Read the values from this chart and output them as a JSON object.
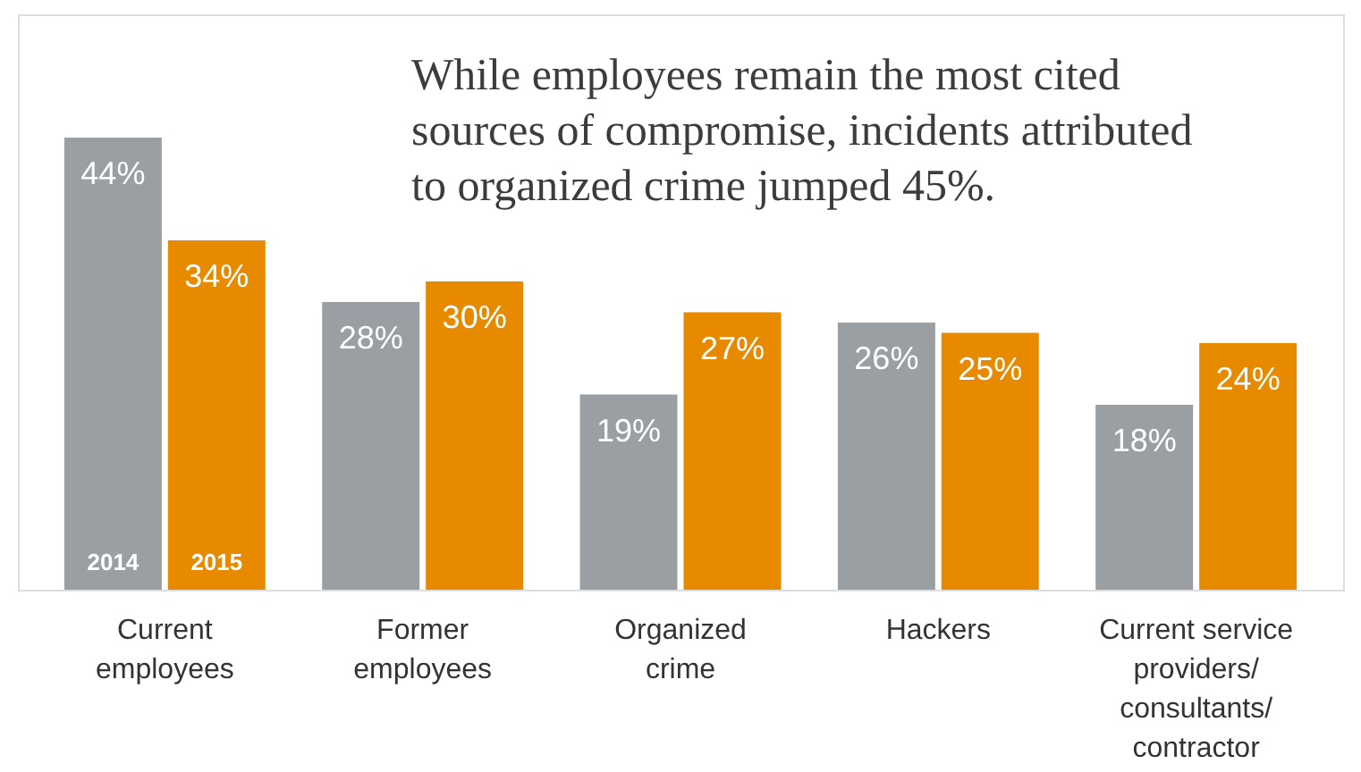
{
  "chart_data": {
    "type": "bar",
    "title": "While employees remain the most cited sources of compromise, incidents attributed to organized crime jumped 45%.",
    "categories": [
      "Current employees",
      "Former employees",
      "Organized crime",
      "Hackers",
      "Current service providers/ consultants/ contractor"
    ],
    "series": [
      {
        "name": "2014",
        "color": "#9a9fa3",
        "values": [
          44,
          28,
          19,
          26,
          18
        ],
        "value_labels": [
          "44%",
          "28%",
          "19%",
          "26%",
          "18%"
        ]
      },
      {
        "name": "2015",
        "color": "#e88a00",
        "values": [
          34,
          30,
          27,
          25,
          24
        ],
        "value_labels": [
          "34%",
          "30%",
          "27%",
          "25%",
          "24%"
        ]
      }
    ],
    "ylim": [
      0,
      56
    ],
    "grid": false,
    "tick_labels": "x"
  }
}
